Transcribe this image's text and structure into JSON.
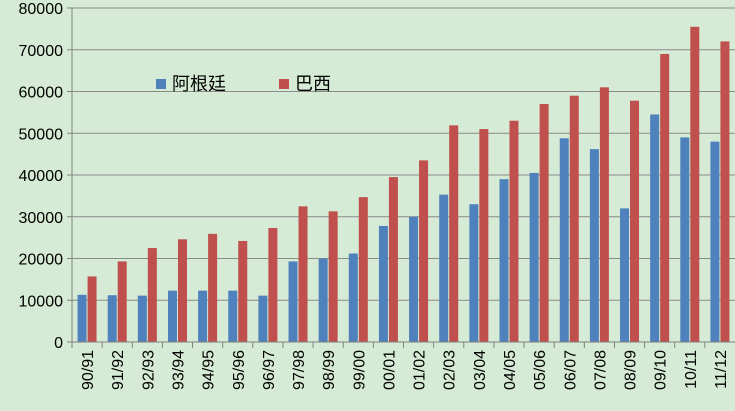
{
  "chart_data": {
    "type": "bar",
    "title": "",
    "xlabel": "",
    "ylabel": "",
    "ylim": [
      0,
      80000
    ],
    "yticks": [
      0,
      10000,
      20000,
      30000,
      40000,
      50000,
      60000,
      70000,
      80000
    ],
    "grid": true,
    "legend_position": "upper-left inside plot",
    "categories": [
      "90/91",
      "91/92",
      "92/93",
      "93/94",
      "94/95",
      "95/96",
      "96/97",
      "97/98",
      "98/99",
      "99/00",
      "00/01",
      "01/02",
      "02/03",
      "03/04",
      "04/05",
      "05/06",
      "06/07",
      "07/08",
      "08/09",
      "09/10",
      "10/11",
      "11/12"
    ],
    "series": [
      {
        "name": "阿根廷",
        "color": "#4f81bd",
        "values": [
          11300,
          11200,
          11100,
          12300,
          12300,
          12300,
          11100,
          19300,
          20000,
          21200,
          27800,
          30000,
          35300,
          33000,
          39000,
          40500,
          48800,
          46200,
          32000,
          54500,
          49000,
          48000
        ]
      },
      {
        "name": "巴西",
        "color": "#c0504d",
        "values": [
          15700,
          19300,
          22500,
          24600,
          25900,
          24200,
          27300,
          32500,
          31300,
          34700,
          39500,
          43500,
          51900,
          51000,
          53000,
          57000,
          59000,
          61000,
          57800,
          69000,
          75500,
          72000
        ]
      }
    ]
  }
}
